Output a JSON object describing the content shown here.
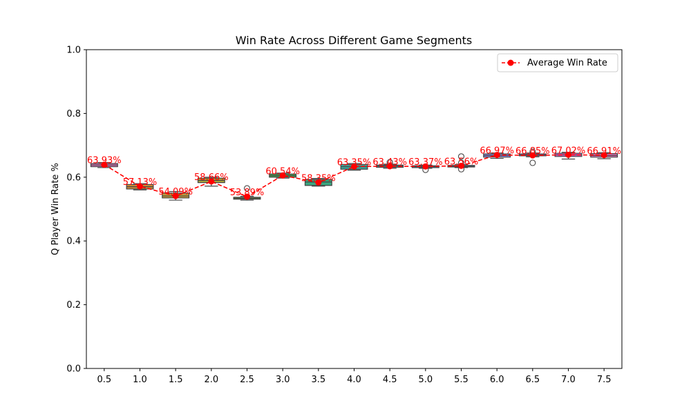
{
  "chart_data": {
    "type": "box",
    "title": "Win Rate Across Different Game Segments",
    "xlabel": "",
    "ylabel": "Q Player Win Rate %",
    "ylim": [
      0,
      1.0
    ],
    "yticks": [
      "0.0",
      "0.2",
      "0.4",
      "0.6",
      "0.8",
      "1.0"
    ],
    "categories": [
      "0.5",
      "1.0",
      "1.5",
      "2.0",
      "2.5",
      "3.0",
      "3.5",
      "4.0",
      "4.5",
      "5.0",
      "5.5",
      "6.0",
      "6.5",
      "7.0",
      "7.5"
    ],
    "box_colors": [
      "#e377c2",
      "#d08a36",
      "#c49a3a",
      "#a9a23a",
      "#7aa63b",
      "#3daa52",
      "#3aa77f",
      "#39a59a",
      "#3aa3ae",
      "#3d9fc8",
      "#5d93e0",
      "#8d86e6",
      "#b177e6",
      "#d56fdc",
      "#e070b5"
    ],
    "boxes": [
      {
        "q1": 0.633,
        "median": 0.638,
        "q3": 0.643,
        "whisker_low": 0.63,
        "whisker_high": 0.646,
        "outliers": []
      },
      {
        "q1": 0.563,
        "median": 0.57,
        "q3": 0.577,
        "whisker_low": 0.56,
        "whisker_high": 0.58,
        "outliers": []
      },
      {
        "q1": 0.535,
        "median": 0.541,
        "q3": 0.55,
        "whisker_low": 0.528,
        "whisker_high": 0.555,
        "outliers": []
      },
      {
        "q1": 0.583,
        "median": 0.59,
        "q3": 0.597,
        "whisker_low": 0.572,
        "whisker_high": 0.6,
        "outliers": []
      },
      {
        "q1": 0.531,
        "median": 0.534,
        "q3": 0.537,
        "whisker_low": 0.528,
        "whisker_high": 0.54,
        "outliers": [
          0.565
        ]
      },
      {
        "q1": 0.6,
        "median": 0.605,
        "q3": 0.61,
        "whisker_low": 0.597,
        "whisker_high": 0.613,
        "outliers": []
      },
      {
        "q1": 0.574,
        "median": 0.585,
        "q3": 0.593,
        "whisker_low": 0.572,
        "whisker_high": 0.596,
        "outliers": []
      },
      {
        "q1": 0.625,
        "median": 0.633,
        "q3": 0.64,
        "whisker_low": 0.622,
        "whisker_high": 0.643,
        "outliers": []
      },
      {
        "q1": 0.631,
        "median": 0.635,
        "q3": 0.638,
        "whisker_low": 0.628,
        "whisker_high": 0.641,
        "outliers": [
          0.647
        ]
      },
      {
        "q1": 0.63,
        "median": 0.633,
        "q3": 0.636,
        "whisker_low": 0.628,
        "whisker_high": 0.638,
        "outliers": [
          0.623
        ]
      },
      {
        "q1": 0.632,
        "median": 0.634,
        "q3": 0.637,
        "whisker_low": 0.63,
        "whisker_high": 0.64,
        "outliers": [
          0.665,
          0.645,
          0.625
        ]
      },
      {
        "q1": 0.663,
        "median": 0.668,
        "q3": 0.673,
        "whisker_low": 0.659,
        "whisker_high": 0.676,
        "outliers": []
      },
      {
        "q1": 0.667,
        "median": 0.67,
        "q3": 0.673,
        "whisker_low": 0.664,
        "whisker_high": 0.676,
        "outliers": [
          0.68,
          0.645
        ]
      },
      {
        "q1": 0.665,
        "median": 0.67,
        "q3": 0.675,
        "whisker_low": 0.657,
        "whisker_high": 0.678,
        "outliers": []
      },
      {
        "q1": 0.663,
        "median": 0.668,
        "q3": 0.674,
        "whisker_low": 0.658,
        "whisker_high": 0.677,
        "outliers": []
      }
    ],
    "series": [
      {
        "name": "Average Win Rate",
        "color": "#ff0000",
        "values": [
          0.6393,
          0.5713,
          0.5409,
          0.5866,
          0.5389,
          0.6054,
          0.5835,
          0.6335,
          0.6343,
          0.6337,
          0.6356,
          0.6697,
          0.6685,
          0.6702,
          0.6691
        ],
        "labels": [
          "63.93%",
          "57.13%",
          "54.09%",
          "58.66%",
          "53.89%",
          "60.54%",
          "58.35%",
          "63.35%",
          "63.43%",
          "63.37%",
          "63.56%",
          "66.97%",
          "66.85%",
          "67.02%",
          "66.91%"
        ]
      }
    ],
    "legend_position": "top-right",
    "grid": false
  }
}
